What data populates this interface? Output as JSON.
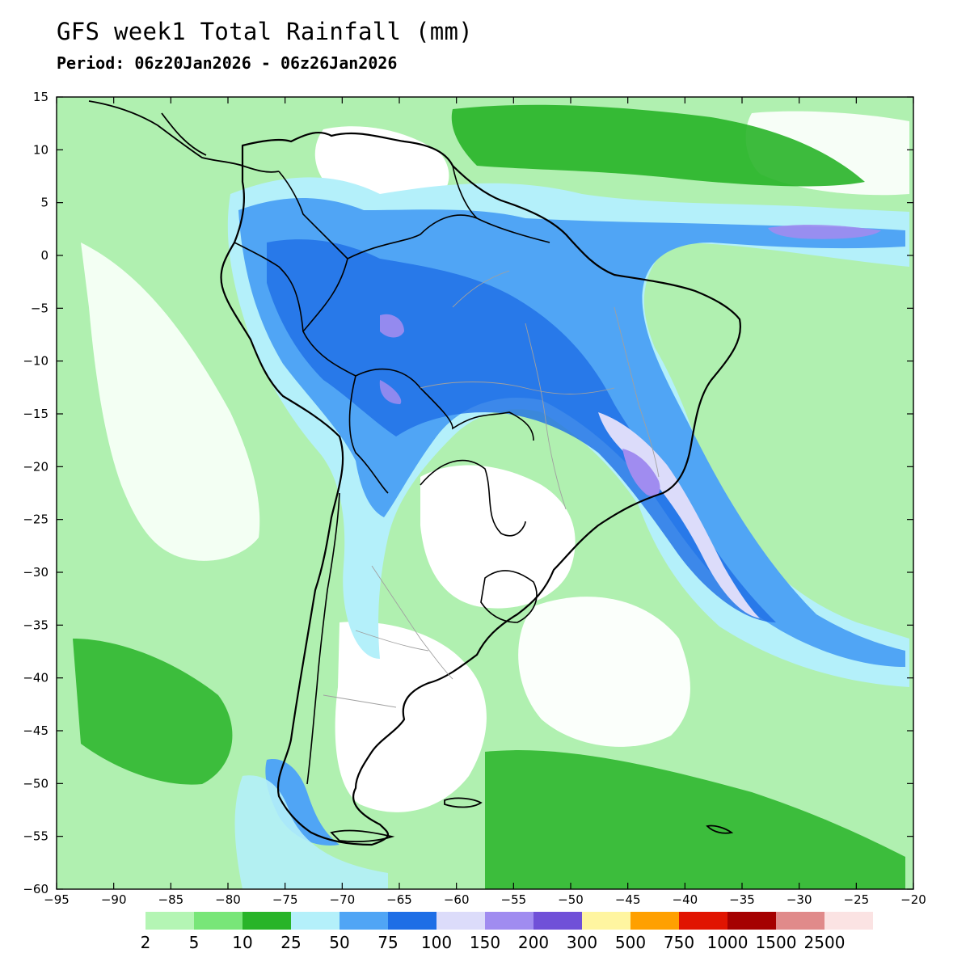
{
  "header": {
    "title": "GFS week1 Total Rainfall (mm)",
    "period": "Period: 06z20Jan2026 - 06z26Jan2026"
  },
  "map": {
    "lon_range": [
      -95,
      -20
    ],
    "lat_range": [
      -60,
      15
    ],
    "x_ticks": [
      -95,
      -90,
      -85,
      -80,
      -75,
      -70,
      -65,
      -60,
      -55,
      -50,
      -45,
      -40,
      -35,
      -30,
      -25,
      -20
    ],
    "x_tick_labels": [
      "−95",
      "−90",
      "−85",
      "−80",
      "−75",
      "−70",
      "−65",
      "−60",
      "−55",
      "−50",
      "−45",
      "−40",
      "−35",
      "−30",
      "−25",
      "−20"
    ],
    "y_ticks": [
      15,
      10,
      5,
      0,
      -5,
      -10,
      -15,
      -20,
      -25,
      -30,
      -35,
      -40,
      -45,
      -50,
      -55,
      -60
    ],
    "y_tick_labels": [
      "15",
      "10",
      "5",
      "0",
      "−5",
      "−10",
      "−15",
      "−20",
      "−25",
      "−30",
      "−35",
      "−40",
      "−45",
      "−50",
      "−55",
      "−60"
    ],
    "background_color": "#b0f0b0",
    "coastline_color": "#000000",
    "border_color": "#a0a0a0"
  },
  "legend": {
    "levels": [
      "2",
      "5",
      "10",
      "25",
      "50",
      "75",
      "100",
      "150",
      "200",
      "300",
      "500",
      "750",
      "1000",
      "1500",
      "2500"
    ],
    "colors": [
      "#b4f5b4",
      "#78e678",
      "#28b428",
      "#b4f0fa",
      "#50a5f5",
      "#1e6ee6",
      "#dcdcfa",
      "#a08cf0",
      "#7050d8",
      "#fff5a0",
      "#ffa000",
      "#e11400",
      "#a50000",
      "#e08a8a",
      "#fbe3e3"
    ]
  }
}
